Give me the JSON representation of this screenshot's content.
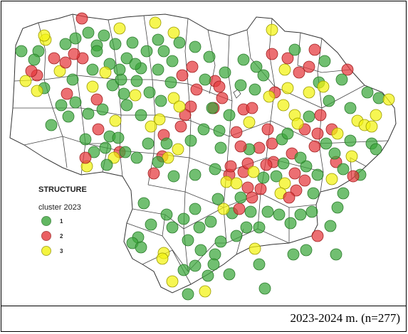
{
  "legend": {
    "title": "STRUCTURE",
    "subtitle": "cluster 2023",
    "items": [
      {
        "label": "1",
        "color": "#3aa63a"
      },
      {
        "label": "2",
        "color": "#e5383b"
      },
      {
        "label": "3",
        "color": "#f2f20f"
      }
    ]
  },
  "caption": "2023-2024 m. (n=277)"
}
